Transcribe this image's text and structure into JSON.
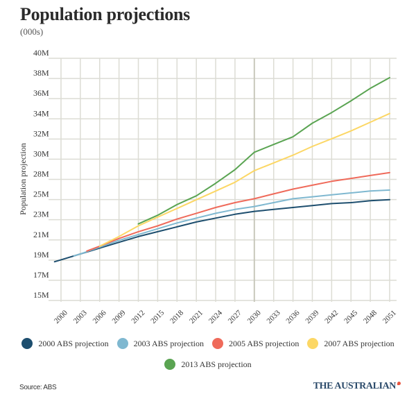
{
  "chart_data": {
    "type": "line",
    "title": "Population projections",
    "subtitle": "(000s)",
    "xlabel": "",
    "ylabel": "Population projection",
    "x_ticks": [
      "2000",
      "2003",
      "2006",
      "2009",
      "2012",
      "2015",
      "2018",
      "2021",
      "2024",
      "2027",
      "2030",
      "2033",
      "2036",
      "2039",
      "2042",
      "2045",
      "2048",
      "2051"
    ],
    "y_ticks": [
      {
        "value": 15,
        "label": "15M"
      },
      {
        "value": 17.083,
        "label": "17M"
      },
      {
        "value": 19.167,
        "label": "19M"
      },
      {
        "value": 21.25,
        "label": "21M"
      },
      {
        "value": 23.333,
        "label": "23M"
      },
      {
        "value": 25.417,
        "label": "25M"
      },
      {
        "value": 27.5,
        "label": "28M"
      },
      {
        "value": 29.583,
        "label": "30M"
      },
      {
        "value": 31.667,
        "label": "32M"
      },
      {
        "value": 33.75,
        "label": "34M"
      },
      {
        "value": 35.833,
        "label": "36M"
      },
      {
        "value": 37.917,
        "label": "38M"
      },
      {
        "value": 40,
        "label": "40M"
      }
    ],
    "xlim": [
      2000,
      2051
    ],
    "ylim": [
      15,
      40
    ],
    "grid": true,
    "highlight_x": 2030,
    "legend_position": "bottom",
    "series": [
      {
        "name": "2000 ABS projection",
        "color": "#1d4e6e",
        "x": [
          1999,
          2000,
          2003,
          2006,
          2009,
          2012,
          2015,
          2018,
          2021,
          2024,
          2027,
          2030,
          2033,
          2036,
          2039,
          2042,
          2045,
          2048,
          2051
        ],
        "values": [
          19.0,
          19.2,
          19.8,
          20.4,
          21.0,
          21.6,
          22.1,
          22.6,
          23.1,
          23.5,
          23.9,
          24.2,
          24.4,
          24.6,
          24.8,
          25.0,
          25.1,
          25.3,
          25.4
        ]
      },
      {
        "name": "2003 ABS projection",
        "color": "#7fb8d0",
        "x": [
          2002,
          2003,
          2006,
          2009,
          2012,
          2015,
          2018,
          2021,
          2024,
          2027,
          2030,
          2033,
          2036,
          2039,
          2042,
          2045,
          2048,
          2051
        ],
        "values": [
          19.6,
          19.8,
          20.5,
          21.2,
          21.8,
          22.4,
          23.0,
          23.5,
          24.0,
          24.4,
          24.7,
          25.1,
          25.5,
          25.7,
          25.9,
          26.1,
          26.3,
          26.4
        ]
      },
      {
        "name": "2005 ABS projection",
        "color": "#ef6a5a",
        "x": [
          2004,
          2006,
          2009,
          2012,
          2015,
          2018,
          2021,
          2024,
          2027,
          2030,
          2033,
          2036,
          2039,
          2042,
          2045,
          2048,
          2051
        ],
        "values": [
          20.1,
          20.6,
          21.4,
          22.1,
          22.7,
          23.4,
          24.0,
          24.6,
          25.1,
          25.5,
          26.0,
          26.5,
          26.9,
          27.3,
          27.6,
          27.9,
          28.2
        ]
      },
      {
        "name": "2007 ABS projection",
        "color": "#fcd765",
        "x": [
          2006,
          2009,
          2012,
          2015,
          2018,
          2021,
          2024,
          2027,
          2030,
          2033,
          2036,
          2039,
          2042,
          2045,
          2048,
          2051
        ],
        "values": [
          20.6,
          21.6,
          22.7,
          23.6,
          24.5,
          25.4,
          26.3,
          27.2,
          28.4,
          29.2,
          30.0,
          30.9,
          31.7,
          32.5,
          33.4,
          34.3
        ]
      },
      {
        "name": "2013 ABS projection",
        "color": "#5aa452",
        "x": [
          2012,
          2015,
          2018,
          2021,
          2024,
          2027,
          2030,
          2033,
          2036,
          2039,
          2042,
          2045,
          2048,
          2051
        ],
        "values": [
          22.9,
          23.8,
          24.9,
          25.8,
          27.1,
          28.5,
          30.3,
          31.1,
          31.9,
          33.3,
          34.4,
          35.6,
          36.9,
          38.0
        ]
      }
    ]
  },
  "footer": {
    "source": "Source: ABS",
    "brand": "THE AUSTRALIAN"
  }
}
